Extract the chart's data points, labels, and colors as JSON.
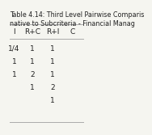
{
  "title_line1": "Table 4.14: Third Level Pairwise Comparis",
  "title_line2": "native to Subcriteria - Financial Manag",
  "col_headers": [
    "I",
    "R+C",
    "R+I",
    "C"
  ],
  "rows": [
    [
      "1/4",
      "1",
      "1",
      ""
    ],
    [
      "1",
      "1",
      "1",
      ""
    ],
    [
      "1",
      "2",
      "1",
      ""
    ],
    [
      "",
      "1",
      "2",
      ""
    ],
    [
      "",
      "",
      "1",
      ""
    ]
  ],
  "bg_color": "#f5f5f0",
  "header_line_color": "#aaaaaa",
  "text_color": "#222222",
  "title_color": "#222222",
  "font_size": 6.5,
  "title_font_size": 5.8
}
